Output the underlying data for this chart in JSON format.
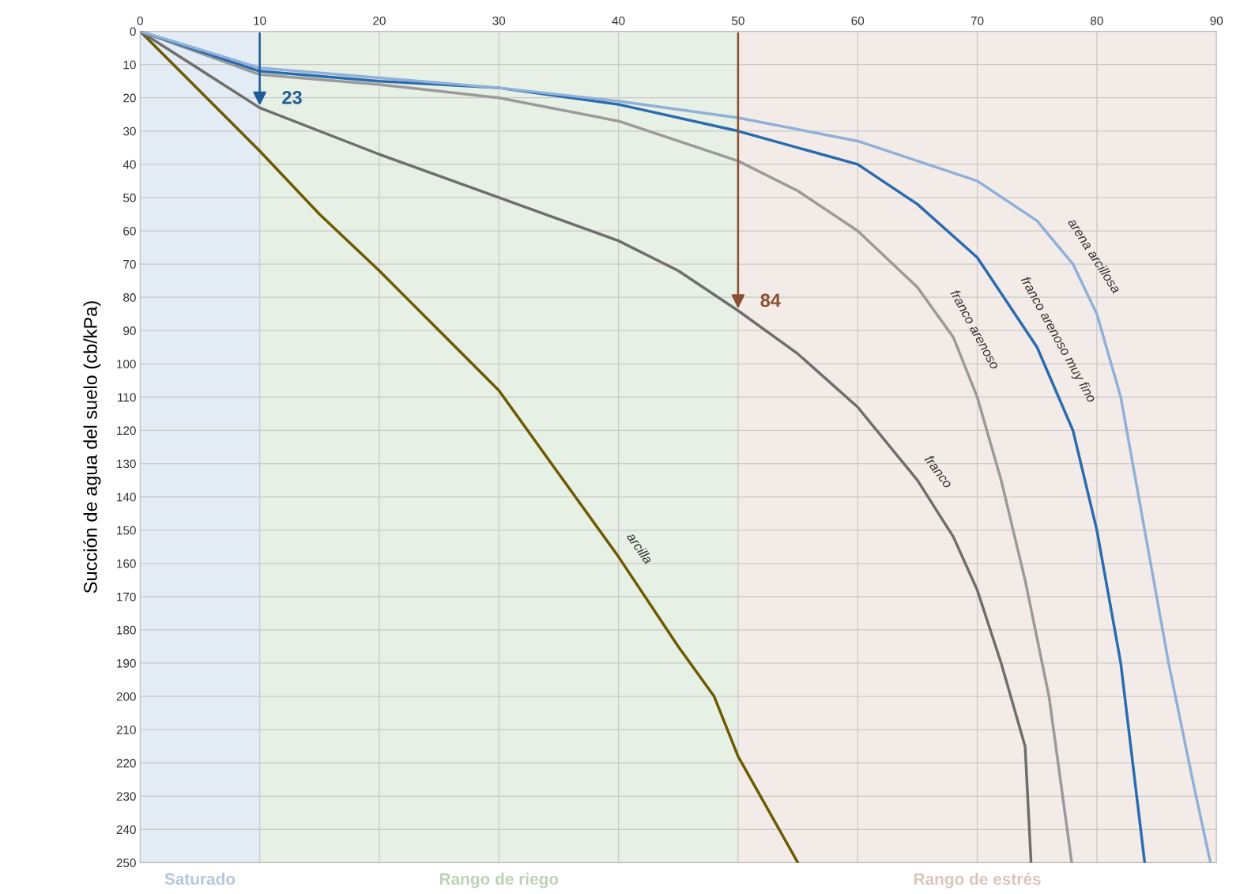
{
  "chart_data": {
    "type": "line",
    "ylabel": "Succión de agua del suelo (cb/kPa)",
    "xlim": [
      0,
      90
    ],
    "xticks": [
      0,
      10,
      20,
      30,
      40,
      50,
      60,
      70,
      80,
      90
    ],
    "ylim": [
      250,
      0
    ],
    "yticks": [
      0,
      10,
      20,
      30,
      40,
      50,
      60,
      70,
      80,
      90,
      100,
      110,
      120,
      130,
      140,
      150,
      160,
      170,
      180,
      190,
      200,
      210,
      220,
      230,
      240,
      250
    ],
    "grid": true,
    "legend": false,
    "bands": [
      {
        "axis": "x",
        "from": 0,
        "to": 10,
        "label": "Saturado",
        "color": "#e3ebf4"
      },
      {
        "axis": "x",
        "from": 10,
        "to": 50,
        "label": "Rango de riego",
        "color": "#e7f0e4"
      },
      {
        "axis": "x",
        "from": 50,
        "to": 90,
        "label": "Rango de estrés",
        "color": "#f3ebe7"
      }
    ],
    "annotations": [
      {
        "text": "23",
        "x": 10,
        "y": 23
      },
      {
        "text": "84",
        "x": 50,
        "y": 84
      }
    ],
    "series": [
      {
        "name": "arcilla",
        "color": "#6b5a00",
        "x": [
          0,
          5,
          10,
          15,
          20,
          25,
          30,
          35,
          40,
          45,
          48,
          50,
          55
        ],
        "values": [
          0,
          18,
          36,
          55,
          72,
          90,
          108,
          133,
          158,
          185,
          200,
          218,
          250
        ]
      },
      {
        "name": "franco",
        "color": "#6e6e6e",
        "x": [
          0,
          10,
          20,
          30,
          40,
          45,
          50,
          55,
          60,
          65,
          68,
          70,
          72,
          74,
          74.5
        ],
        "values": [
          0,
          23,
          37,
          50,
          63,
          72,
          84,
          97,
          113,
          135,
          152,
          168,
          190,
          215,
          250
        ]
      },
      {
        "name": "franco arenoso",
        "color": "#9a9a9a",
        "x": [
          0,
          10,
          20,
          30,
          40,
          50,
          55,
          60,
          65,
          68,
          70,
          72,
          74,
          76,
          77.9
        ],
        "values": [
          0,
          13,
          16,
          20,
          27,
          39,
          48,
          60,
          77,
          92,
          110,
          135,
          165,
          200,
          250
        ]
      },
      {
        "name": "franco arenoso muy fino",
        "color": "#2a6bb0",
        "x": [
          0,
          10,
          20,
          30,
          40,
          50,
          60,
          65,
          70,
          75,
          78,
          80,
          82,
          83,
          84
        ],
        "values": [
          0,
          12,
          15,
          17,
          22,
          30,
          40,
          52,
          68,
          95,
          120,
          150,
          190,
          220,
          250
        ]
      },
      {
        "name": "arena arcillosa",
        "color": "#8fb0d8",
        "x": [
          0,
          10,
          20,
          30,
          40,
          50,
          60,
          70,
          75,
          78,
          80,
          82,
          84,
          86,
          88,
          89.5
        ],
        "values": [
          0,
          11,
          14,
          17,
          21,
          26,
          33,
          45,
          57,
          70,
          85,
          110,
          150,
          190,
          225,
          250
        ]
      }
    ]
  }
}
